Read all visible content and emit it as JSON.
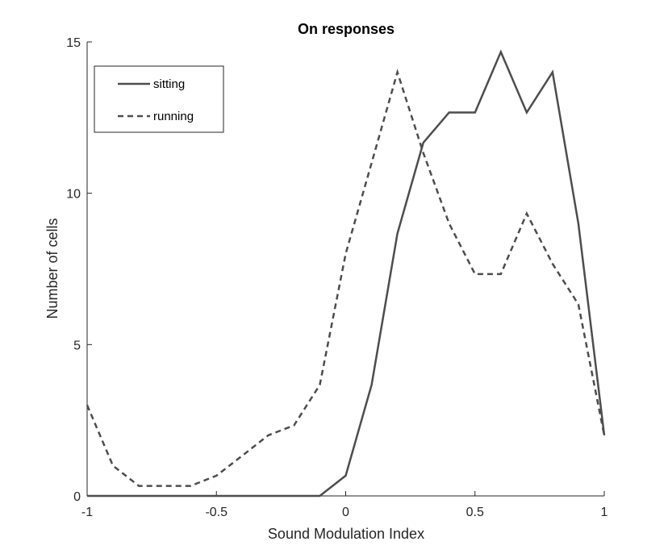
{
  "chart_data": {
    "type": "line",
    "title": "On responses",
    "xlabel": "Sound Modulation Index",
    "ylabel": "Number of cells",
    "xlim": [
      -1,
      1
    ],
    "ylim": [
      0,
      15
    ],
    "xticks": [
      -1,
      -0.5,
      0,
      0.5,
      1
    ],
    "xtick_labels": [
      "-1",
      "-0.5",
      "0",
      "0.5",
      "1"
    ],
    "yticks": [
      0,
      5,
      10,
      15
    ],
    "ytick_labels": [
      "0",
      "5",
      "10",
      "15"
    ],
    "grid": false,
    "legend_position": "top-left",
    "x": [
      -1.0,
      -0.9,
      -0.8,
      -0.7,
      -0.6,
      -0.5,
      -0.4,
      -0.3,
      -0.2,
      -0.1,
      0.0,
      0.1,
      0.2,
      0.3,
      0.4,
      0.5,
      0.6,
      0.7,
      0.8,
      0.9,
      1.0
    ],
    "series": [
      {
        "name": "sitting",
        "style": "solid",
        "color": "#4d4d4d",
        "values": [
          0,
          0,
          0,
          0,
          0,
          0,
          0,
          0,
          0,
          0,
          0.67,
          3.67,
          8.67,
          11.67,
          12.67,
          12.67,
          14.67,
          12.67,
          14,
          9,
          2
        ]
      },
      {
        "name": "running",
        "style": "dashed",
        "color": "#4d4d4d",
        "values": [
          3,
          1,
          0.33,
          0.33,
          0.33,
          0.67,
          1.33,
          2,
          2.33,
          3.67,
          8,
          11,
          14,
          11.33,
          9,
          7.33,
          7.33,
          9.33,
          7.67,
          6.33,
          2
        ]
      }
    ]
  }
}
